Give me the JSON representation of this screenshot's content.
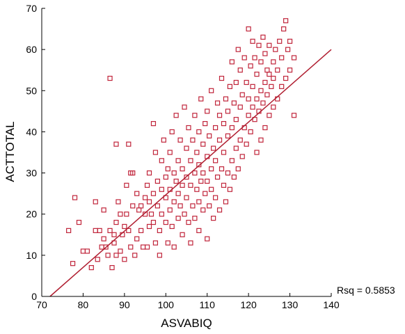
{
  "chart_data": {
    "type": "scatter",
    "title": "",
    "xlabel": "ASVABIQ",
    "ylabel": "ACTTOTAL",
    "xlim": [
      70,
      140
    ],
    "ylim": [
      0,
      70
    ],
    "xticks": [
      70,
      80,
      90,
      100,
      110,
      120,
      130,
      140
    ],
    "yticks": [
      0,
      10,
      20,
      30,
      40,
      50,
      60,
      70
    ],
    "grid": false,
    "legend": "none",
    "marker": "open-square",
    "marker_color": "#C0243A",
    "line_color": "#B01E30",
    "fit_line": {
      "type": "linear",
      "x": [
        72,
        140
      ],
      "y": [
        0,
        60
      ]
    },
    "annotation": "Rsq = 0.5853",
    "series": [
      {
        "points": [
          [
            76.5,
            16
          ],
          [
            77.5,
            8
          ],
          [
            78,
            24
          ],
          [
            79,
            18
          ],
          [
            80,
            11
          ],
          [
            81,
            11
          ],
          [
            82,
            7
          ],
          [
            83,
            23
          ],
          [
            83,
            16
          ],
          [
            83.5,
            9
          ],
          [
            84,
            16
          ],
          [
            84.5,
            12
          ],
          [
            85,
            21
          ],
          [
            85,
            14
          ],
          [
            85.5,
            12
          ],
          [
            86,
            10
          ],
          [
            86.5,
            53
          ],
          [
            86.5,
            16
          ],
          [
            87,
            7
          ],
          [
            87.5,
            15
          ],
          [
            87.5,
            13
          ],
          [
            88,
            37
          ],
          [
            88,
            10
          ],
          [
            88,
            18
          ],
          [
            88.5,
            23
          ],
          [
            89,
            20
          ],
          [
            89,
            11
          ],
          [
            89.5,
            15
          ],
          [
            90,
            9
          ],
          [
            90,
            17
          ],
          [
            90.5,
            20
          ],
          [
            90.5,
            27
          ],
          [
            91,
            37
          ],
          [
            91,
            16
          ],
          [
            91.5,
            30
          ],
          [
            91.5,
            12
          ],
          [
            92,
            22
          ],
          [
            92,
            30
          ],
          [
            92.5,
            10
          ],
          [
            93,
            25
          ],
          [
            93,
            14
          ],
          [
            93.5,
            21
          ],
          [
            94,
            22
          ],
          [
            94,
            16
          ],
          [
            94.5,
            12
          ],
          [
            95,
            24
          ],
          [
            95,
            20
          ],
          [
            95.5,
            27
          ],
          [
            95.5,
            12
          ],
          [
            96,
            17
          ],
          [
            96,
            23
          ],
          [
            96,
            30
          ],
          [
            96.5,
            20
          ],
          [
            97,
            18
          ],
          [
            97,
            25
          ],
          [
            97,
            42
          ],
          [
            97.5,
            13
          ],
          [
            97.5,
            35
          ],
          [
            98,
            22
          ],
          [
            98,
            28
          ],
          [
            98.5,
            10
          ],
          [
            98.5,
            16
          ],
          [
            99,
            20
          ],
          [
            99,
            26
          ],
          [
            99,
            33
          ],
          [
            99.5,
            38
          ],
          [
            100,
            18
          ],
          [
            100,
            24
          ],
          [
            100,
            29
          ],
          [
            100.5,
            13
          ],
          [
            100.5,
            31
          ],
          [
            101,
            21
          ],
          [
            101,
            26
          ],
          [
            101,
            35
          ],
          [
            101.5,
            17
          ],
          [
            101.5,
            40
          ],
          [
            102,
            12
          ],
          [
            102,
            23
          ],
          [
            102,
            30
          ],
          [
            102.5,
            28
          ],
          [
            102.5,
            44
          ],
          [
            103,
            19
          ],
          [
            103,
            25
          ],
          [
            103,
            33
          ],
          [
            103.5,
            22
          ],
          [
            103.5,
            38
          ],
          [
            104,
            15
          ],
          [
            104,
            27
          ],
          [
            104,
            31
          ],
          [
            104.5,
            20
          ],
          [
            104.5,
            46
          ],
          [
            105,
            24
          ],
          [
            105,
            29
          ],
          [
            105,
            36
          ],
          [
            105.5,
            18
          ],
          [
            105.5,
            41
          ],
          [
            106,
            13
          ],
          [
            106,
            27
          ],
          [
            106,
            33
          ],
          [
            106.5,
            22
          ],
          [
            106.5,
            38
          ],
          [
            107,
            19
          ],
          [
            107,
            30
          ],
          [
            107,
            44
          ],
          [
            107.5,
            26
          ],
          [
            107.5,
            35
          ],
          [
            108,
            16
          ],
          [
            108,
            23
          ],
          [
            108,
            32
          ],
          [
            108,
            40
          ],
          [
            108.5,
            28
          ],
          [
            108.5,
            48
          ],
          [
            109,
            21
          ],
          [
            109,
            30
          ],
          [
            109,
            37
          ],
          [
            109.5,
            25
          ],
          [
            109.5,
            42
          ],
          [
            110,
            14
          ],
          [
            110,
            28
          ],
          [
            110,
            34
          ],
          [
            110,
            45
          ],
          [
            110.5,
            22
          ],
          [
            110.5,
            39
          ],
          [
            111,
            26
          ],
          [
            111,
            31
          ],
          [
            111,
            50
          ],
          [
            111.5,
            19
          ],
          [
            111.5,
            36
          ],
          [
            112,
            24
          ],
          [
            112,
            33
          ],
          [
            112,
            41
          ],
          [
            112.5,
            29
          ],
          [
            112.5,
            47
          ],
          [
            113,
            21
          ],
          [
            113,
            38
          ],
          [
            113,
            44
          ],
          [
            113.5,
            31
          ],
          [
            113.5,
            53
          ],
          [
            114,
            27
          ],
          [
            114,
            35
          ],
          [
            114,
            42
          ],
          [
            114.5,
            23
          ],
          [
            114.5,
            48
          ],
          [
            115,
            30
          ],
          [
            115,
            39
          ],
          [
            115,
            45
          ],
          [
            115.5,
            26
          ],
          [
            115.5,
            51
          ],
          [
            116,
            33
          ],
          [
            116,
            41
          ],
          [
            116,
            57
          ],
          [
            116.5,
            29
          ],
          [
            116.5,
            47
          ],
          [
            117,
            36
          ],
          [
            117,
            43
          ],
          [
            117,
            52
          ],
          [
            117.5,
            31
          ],
          [
            117.5,
            60
          ],
          [
            118,
            38
          ],
          [
            118,
            46
          ],
          [
            118,
            55
          ],
          [
            118.5,
            34
          ],
          [
            118.5,
            49
          ],
          [
            119,
            41
          ],
          [
            119,
            58
          ],
          [
            119.5,
            37
          ],
          [
            119.5,
            52
          ],
          [
            120,
            44
          ],
          [
            120,
            65
          ],
          [
            120,
            48
          ],
          [
            120.5,
            40
          ],
          [
            120.5,
            56
          ],
          [
            121,
            46
          ],
          [
            121,
            62
          ],
          [
            121,
            51
          ],
          [
            121.5,
            43
          ],
          [
            121.5,
            58
          ],
          [
            122,
            48
          ],
          [
            122,
            35
          ],
          [
            122,
            54
          ],
          [
            122.5,
            45
          ],
          [
            122.5,
            61
          ],
          [
            123,
            50
          ],
          [
            123,
            38
          ],
          [
            123,
            57
          ],
          [
            123.5,
            47
          ],
          [
            123.5,
            63
          ],
          [
            124,
            52
          ],
          [
            124,
            41
          ],
          [
            124,
            59
          ],
          [
            124.5,
            49
          ],
          [
            124.5,
            55
          ],
          [
            125,
            54
          ],
          [
            125,
            44
          ],
          [
            125,
            61
          ],
          [
            125.5,
            51
          ],
          [
            126,
            57
          ],
          [
            126,
            46
          ],
          [
            126,
            53
          ],
          [
            126.5,
            60
          ],
          [
            127,
            48
          ],
          [
            127,
            55
          ],
          [
            127.5,
            62
          ],
          [
            128,
            51
          ],
          [
            128,
            58
          ],
          [
            128.5,
            65
          ],
          [
            129,
            53
          ],
          [
            129,
            67
          ],
          [
            129.5,
            60
          ],
          [
            130,
            55
          ],
          [
            130,
            62
          ],
          [
            131,
            58
          ],
          [
            131,
            44
          ]
        ]
      }
    ]
  }
}
